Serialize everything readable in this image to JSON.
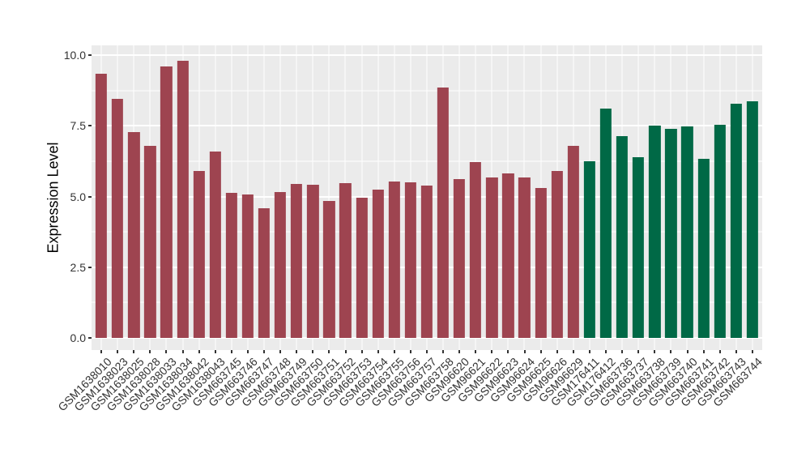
{
  "chart_data": {
    "type": "bar",
    "title": "",
    "xlabel": "",
    "ylabel": "Expression Level",
    "ylim": [
      0,
      10
    ],
    "grid": true,
    "legend_position": "none",
    "panel_background": "#EBEBEB",
    "grid_color": "#FFFFFF",
    "figure_background": "#FFFFFF",
    "y_ticks": [
      {
        "label": "0.0",
        "value": 0
      },
      {
        "label": "2.5",
        "value": 2.5
      },
      {
        "label": "5.0",
        "value": 5
      },
      {
        "label": "7.5",
        "value": 7.5
      },
      {
        "label": "10.0",
        "value": 10
      }
    ],
    "y_minor_gridlines": [
      1.25,
      3.75,
      6.25,
      8.75
    ],
    "categories": [
      "GSM1638010",
      "GSM1638023",
      "GSM1638025",
      "GSM1638028",
      "GSM1638033",
      "GSM1638034",
      "GSM1638042",
      "GSM1638043",
      "GSM663745",
      "GSM663746",
      "GSM663747",
      "GSM663748",
      "GSM663749",
      "GSM663750",
      "GSM663751",
      "GSM663752",
      "GSM663753",
      "GSM663754",
      "GSM663755",
      "GSM663756",
      "GSM663757",
      "GSM663758",
      "GSM96620",
      "GSM96621",
      "GSM96622",
      "GSM96623",
      "GSM96624",
      "GSM96625",
      "GSM96626",
      "GSM96629",
      "GSM176411",
      "GSM176412",
      "GSM663736",
      "GSM663737",
      "GSM663738",
      "GSM663739",
      "GSM663740",
      "GSM663741",
      "GSM663742",
      "GSM663743",
      "GSM663744"
    ],
    "values": [
      9.33,
      8.46,
      7.27,
      6.79,
      9.59,
      9.81,
      5.91,
      6.6,
      5.13,
      5.07,
      4.58,
      5.16,
      5.45,
      5.43,
      4.85,
      5.47,
      4.95,
      5.25,
      5.52,
      5.51,
      5.38,
      8.86,
      5.62,
      6.22,
      5.66,
      5.82,
      5.66,
      5.31,
      5.9,
      6.8,
      6.24,
      8.1,
      7.14,
      6.38,
      7.52,
      7.4,
      7.47,
      6.33,
      7.55,
      8.28,
      8.36
    ],
    "groups": [
      "red",
      "red",
      "red",
      "red",
      "red",
      "red",
      "red",
      "red",
      "red",
      "red",
      "red",
      "red",
      "red",
      "red",
      "red",
      "red",
      "red",
      "red",
      "red",
      "red",
      "red",
      "red",
      "red",
      "red",
      "red",
      "red",
      "red",
      "red",
      "red",
      "red",
      "green",
      "green",
      "green",
      "green",
      "green",
      "green",
      "green",
      "green",
      "green",
      "green",
      "green"
    ],
    "palette": {
      "red": "#9E4450",
      "green": "#006946"
    }
  }
}
